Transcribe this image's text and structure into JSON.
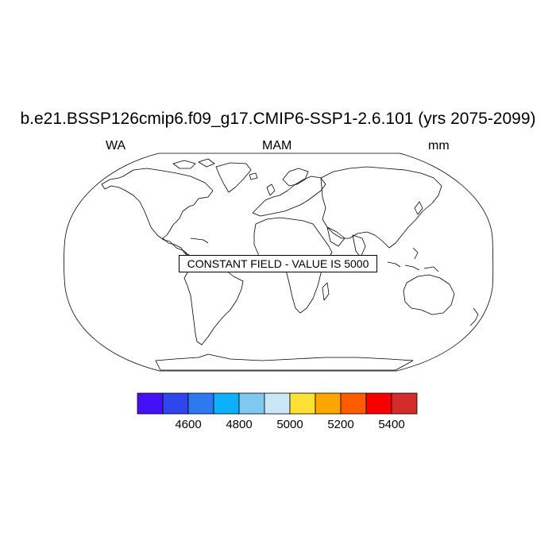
{
  "title": "b.e21.BSSP126cmip6.f09_g17.CMIP6-SSP1-2.6.101 (yrs 2075-2099)",
  "subtitle_left": "WA",
  "subtitle_center": "MAM",
  "subtitle_right": "mm",
  "annotation": "CONSTANT FIELD - VALUE IS 5000",
  "map": {
    "projection": "robinson",
    "features": [
      "coastlines"
    ]
  },
  "colorbar": {
    "colors": [
      "#4410f5",
      "#2f46ec",
      "#2d79f0",
      "#0db0fb",
      "#7fc9f0",
      "#cbe6f7",
      "#fce033",
      "#fda500",
      "#fd5b00",
      "#f90000",
      "#d42b2b"
    ],
    "tick_labels": [
      "4600",
      "4800",
      "5000",
      "5200",
      "5400"
    ],
    "tick_values": [
      4600,
      4800,
      5000,
      5200,
      5400
    ]
  }
}
